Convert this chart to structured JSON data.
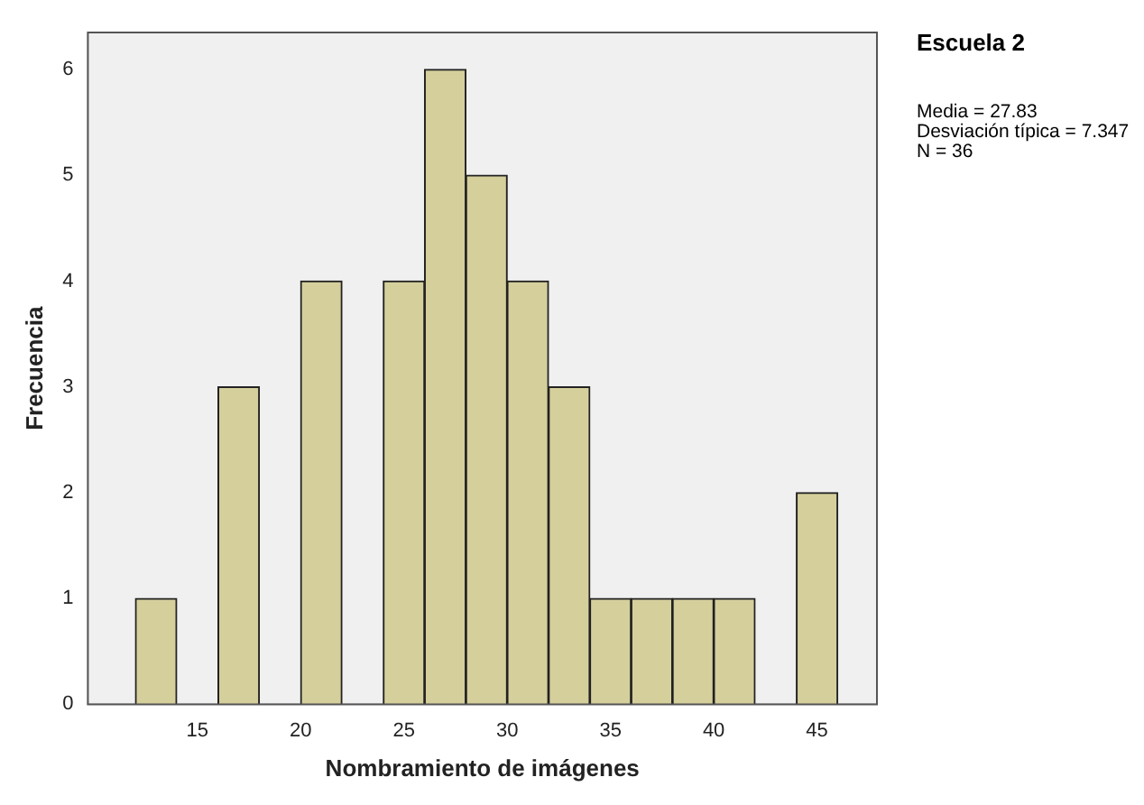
{
  "chart_data": {
    "type": "histogram",
    "title": "Escuela 2",
    "xlabel": "Nombramiento de imágenes",
    "ylabel": "Frecuencia",
    "bins": [
      12,
      14,
      16,
      18,
      20,
      22,
      24,
      26,
      28,
      30,
      32,
      34,
      36,
      38,
      40,
      42,
      44,
      46
    ],
    "values": [
      1,
      0,
      3,
      0,
      4,
      0,
      4,
      6,
      5,
      4,
      3,
      1,
      1,
      1,
      1,
      0,
      2
    ],
    "color": "#d5cf9c",
    "xlim": [
      9.7,
      47.9
    ],
    "xticks": [
      15,
      20,
      25,
      30,
      35,
      40,
      45
    ],
    "ylim": [
      0,
      6.35
    ],
    "yticks": [
      0,
      1,
      2,
      3,
      4,
      5,
      6
    ],
    "grid": false,
    "legend": false,
    "annotations": [
      "Media = 27.83",
      "Desviación típica = 7.347",
      "N = 36"
    ]
  }
}
